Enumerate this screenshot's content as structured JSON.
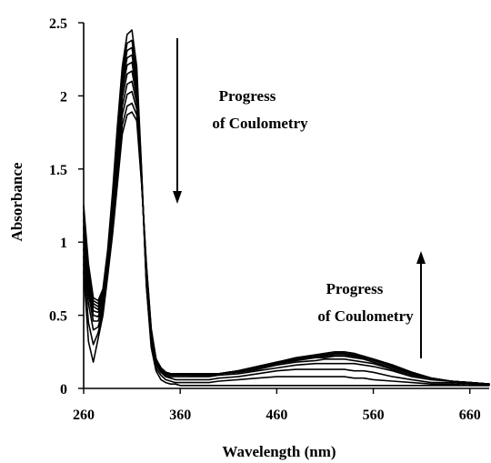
{
  "chart_data": {
    "type": "line",
    "title": "",
    "xlabel": "Wavelength (nm)",
    "ylabel": "Absorbance",
    "xlim": [
      260,
      680
    ],
    "ylim": [
      0,
      2.5
    ],
    "x_ticks": [
      260,
      360,
      460,
      560,
      660
    ],
    "x_tick_labels": [
      "260",
      "360",
      "460",
      "560",
      "660"
    ],
    "y_ticks": [
      0,
      0.5,
      1,
      1.5,
      2,
      2.5
    ],
    "y_tick_labels": [
      "0",
      "0.5",
      "1",
      "1.5",
      "2",
      "2.5"
    ],
    "grid": false,
    "legend": "none",
    "annotations": {
      "top_text_line1": "Progress",
      "top_text_line2": "of Coulometry",
      "top_arrow_direction": "down",
      "bottom_text_line1": "Progress",
      "bottom_text_line2": "of Coulometry",
      "bottom_arrow_direction": "up"
    },
    "x": [
      260,
      265,
      270,
      275,
      280,
      285,
      290,
      295,
      300,
      305,
      310,
      315,
      320,
      325,
      330,
      335,
      340,
      345,
      350,
      355,
      360,
      365,
      370,
      375,
      380,
      390,
      400,
      420,
      440,
      460,
      480,
      500,
      510,
      520,
      530,
      540,
      550,
      560,
      580,
      600,
      620,
      640,
      660,
      680
    ],
    "series": [
      {
        "values": [
          1.25,
          0.85,
          0.62,
          0.6,
          0.68,
          0.95,
          1.35,
          1.8,
          2.2,
          2.42,
          2.45,
          2.2,
          1.5,
          0.7,
          0.28,
          0.12,
          0.06,
          0.04,
          0.03,
          0.03,
          0.02,
          0.02,
          0.02,
          0.02,
          0.02,
          0.02,
          0.02,
          0.02,
          0.02,
          0.02,
          0.02,
          0.02,
          0.02,
          0.02,
          0.02,
          0.02,
          0.02,
          0.02,
          0.02,
          0.02,
          0.02,
          0.02,
          0.02,
          0.02
        ]
      },
      {
        "values": [
          1.2,
          0.82,
          0.6,
          0.58,
          0.66,
          0.93,
          1.32,
          1.76,
          2.16,
          2.36,
          2.38,
          2.15,
          1.48,
          0.7,
          0.3,
          0.14,
          0.09,
          0.06,
          0.05,
          0.04,
          0.04,
          0.04,
          0.04,
          0.04,
          0.04,
          0.04,
          0.05,
          0.06,
          0.07,
          0.08,
          0.08,
          0.08,
          0.08,
          0.08,
          0.08,
          0.07,
          0.07,
          0.06,
          0.05,
          0.04,
          0.03,
          0.03,
          0.02,
          0.02
        ]
      },
      {
        "values": [
          1.15,
          0.8,
          0.58,
          0.56,
          0.64,
          0.91,
          1.29,
          1.72,
          2.12,
          2.31,
          2.33,
          2.11,
          1.47,
          0.72,
          0.32,
          0.16,
          0.11,
          0.08,
          0.07,
          0.06,
          0.06,
          0.06,
          0.06,
          0.06,
          0.06,
          0.06,
          0.07,
          0.08,
          0.1,
          0.12,
          0.13,
          0.13,
          0.13,
          0.13,
          0.13,
          0.12,
          0.12,
          0.11,
          0.08,
          0.06,
          0.04,
          0.04,
          0.03,
          0.03
        ]
      },
      {
        "values": [
          1.1,
          0.77,
          0.56,
          0.54,
          0.62,
          0.89,
          1.26,
          1.68,
          2.08,
          2.26,
          2.28,
          2.07,
          1.46,
          0.74,
          0.34,
          0.18,
          0.12,
          0.09,
          0.08,
          0.08,
          0.08,
          0.08,
          0.08,
          0.08,
          0.08,
          0.08,
          0.09,
          0.1,
          0.12,
          0.14,
          0.16,
          0.17,
          0.17,
          0.17,
          0.17,
          0.17,
          0.16,
          0.15,
          0.12,
          0.08,
          0.06,
          0.05,
          0.04,
          0.03
        ]
      },
      {
        "values": [
          1.05,
          0.74,
          0.53,
          0.52,
          0.6,
          0.87,
          1.23,
          1.64,
          2.04,
          2.21,
          2.23,
          2.03,
          1.45,
          0.76,
          0.36,
          0.19,
          0.13,
          0.1,
          0.09,
          0.09,
          0.09,
          0.09,
          0.09,
          0.09,
          0.09,
          0.09,
          0.1,
          0.11,
          0.13,
          0.16,
          0.18,
          0.19,
          0.2,
          0.2,
          0.2,
          0.19,
          0.18,
          0.17,
          0.13,
          0.09,
          0.07,
          0.05,
          0.04,
          0.03
        ]
      },
      {
        "values": [
          1.0,
          0.7,
          0.5,
          0.49,
          0.58,
          0.85,
          1.2,
          1.6,
          1.99,
          2.15,
          2.17,
          1.99,
          1.44,
          0.78,
          0.37,
          0.2,
          0.14,
          0.11,
          0.1,
          0.1,
          0.1,
          0.1,
          0.09,
          0.09,
          0.09,
          0.09,
          0.1,
          0.12,
          0.14,
          0.17,
          0.19,
          0.21,
          0.21,
          0.22,
          0.22,
          0.21,
          0.2,
          0.18,
          0.14,
          0.1,
          0.07,
          0.05,
          0.04,
          0.03
        ]
      },
      {
        "values": [
          0.95,
          0.65,
          0.46,
          0.46,
          0.56,
          0.83,
          1.17,
          1.55,
          1.93,
          2.08,
          2.1,
          1.95,
          1.43,
          0.8,
          0.38,
          0.2,
          0.14,
          0.11,
          0.1,
          0.1,
          0.1,
          0.1,
          0.1,
          0.1,
          0.1,
          0.1,
          0.1,
          0.12,
          0.14,
          0.17,
          0.2,
          0.22,
          0.22,
          0.23,
          0.23,
          0.22,
          0.21,
          0.19,
          0.15,
          0.1,
          0.07,
          0.05,
          0.04,
          0.03
        ]
      },
      {
        "values": [
          0.9,
          0.58,
          0.4,
          0.42,
          0.54,
          0.81,
          1.14,
          1.5,
          1.87,
          2.01,
          2.03,
          1.91,
          1.42,
          0.82,
          0.39,
          0.2,
          0.14,
          0.11,
          0.1,
          0.1,
          0.1,
          0.1,
          0.1,
          0.1,
          0.1,
          0.1,
          0.1,
          0.12,
          0.15,
          0.18,
          0.2,
          0.22,
          0.23,
          0.24,
          0.24,
          0.23,
          0.21,
          0.2,
          0.15,
          0.11,
          0.07,
          0.05,
          0.04,
          0.03
        ]
      },
      {
        "values": [
          0.85,
          0.45,
          0.3,
          0.38,
          0.52,
          0.79,
          1.1,
          1.45,
          1.8,
          1.93,
          1.95,
          1.87,
          1.41,
          0.84,
          0.4,
          0.2,
          0.14,
          0.11,
          0.1,
          0.1,
          0.1,
          0.1,
          0.1,
          0.1,
          0.1,
          0.1,
          0.1,
          0.12,
          0.15,
          0.18,
          0.2,
          0.22,
          0.23,
          0.24,
          0.24,
          0.23,
          0.22,
          0.2,
          0.16,
          0.11,
          0.07,
          0.05,
          0.04,
          0.03
        ]
      },
      {
        "values": [
          0.8,
          0.32,
          0.18,
          0.34,
          0.5,
          0.77,
          1.06,
          1.4,
          1.74,
          1.87,
          1.89,
          1.83,
          1.4,
          0.85,
          0.41,
          0.2,
          0.14,
          0.11,
          0.1,
          0.1,
          0.1,
          0.1,
          0.1,
          0.1,
          0.1,
          0.1,
          0.1,
          0.12,
          0.15,
          0.18,
          0.21,
          0.23,
          0.24,
          0.25,
          0.25,
          0.24,
          0.22,
          0.2,
          0.16,
          0.11,
          0.07,
          0.05,
          0.04,
          0.03
        ]
      }
    ]
  }
}
